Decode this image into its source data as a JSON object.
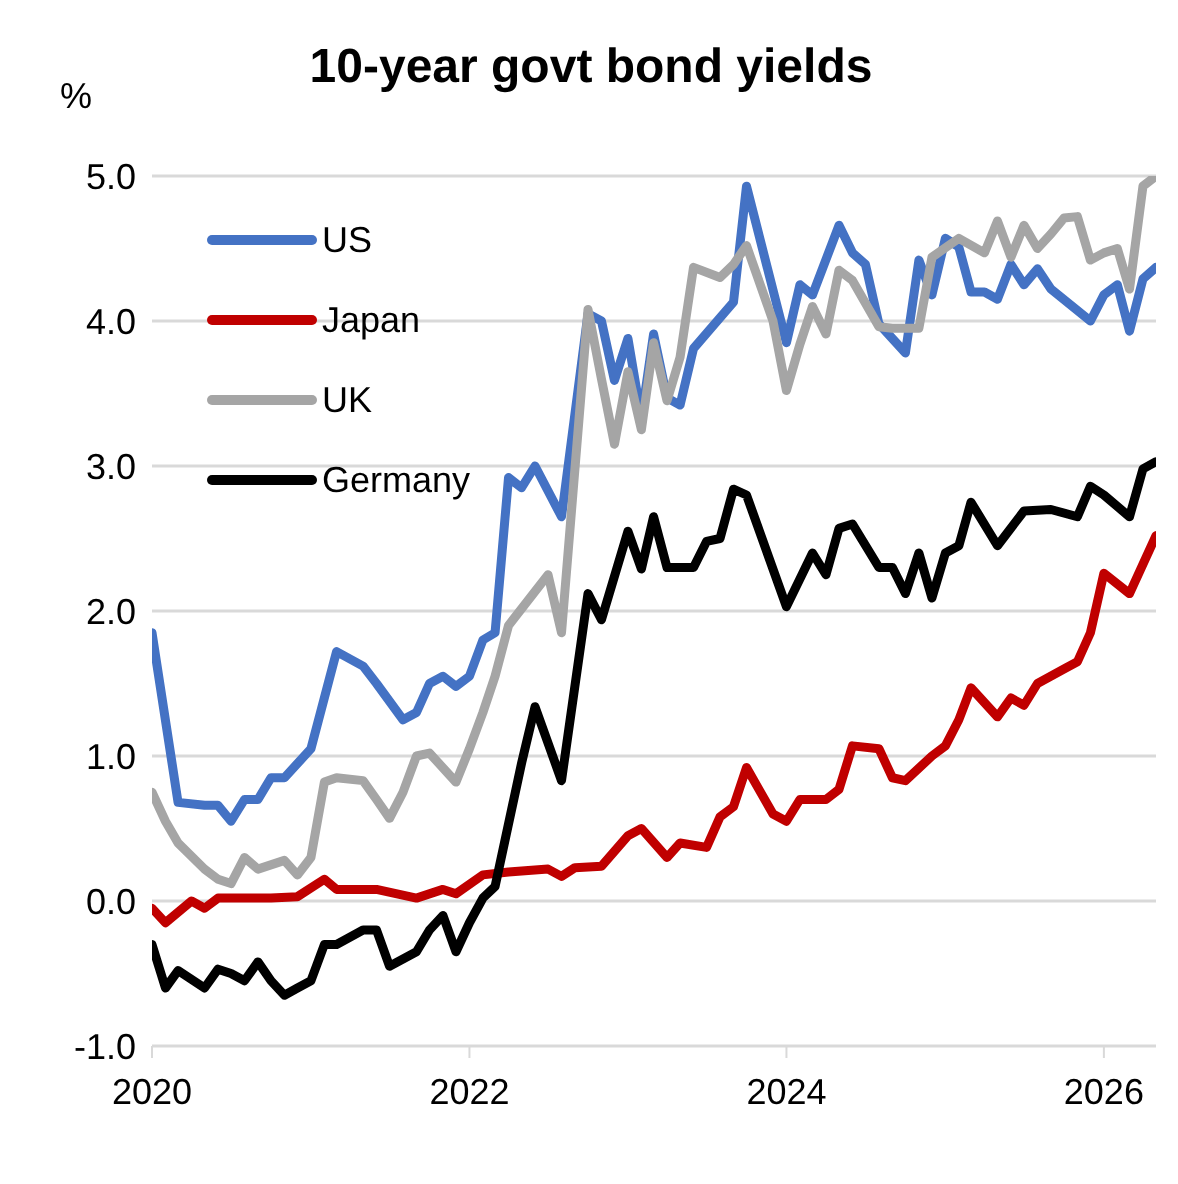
{
  "chart_data": {
    "type": "line",
    "title": "10-year govt bond yields",
    "ylabel": "%",
    "grid": "y",
    "legend": "top left",
    "line_style": "solid",
    "marker": "none",
    "xlim": [
      "2020-01",
      "2026-05"
    ],
    "xticks": [
      "2020",
      "2022",
      "2024",
      "2026"
    ],
    "ylim": [
      -1,
      5
    ],
    "yticks": [
      {
        "value": -1,
        "label": "-1.0"
      },
      {
        "value": 0,
        "label": "0.0"
      },
      {
        "value": 1,
        "label": "1.0"
      },
      {
        "value": 2,
        "label": "2.0"
      },
      {
        "value": 3,
        "label": "3.0"
      },
      {
        "value": 4,
        "label": "4.0"
      },
      {
        "value": 5,
        "label": "5.0"
      }
    ],
    "series": [
      {
        "name": "US",
        "color": "#4472c4",
        "x": [
          "2020-01",
          "2020-03",
          "2020-05",
          "2020-06",
          "2020-07",
          "2020-08",
          "2020-09",
          "2020-10",
          "2020-11",
          "2021-01",
          "2021-03",
          "2021-05",
          "2021-06",
          "2021-08",
          "2021-09",
          "2021-10",
          "2021-11",
          "2021-12",
          "2022-01",
          "2022-02",
          "2022-03",
          "2022-04",
          "2022-05",
          "2022-06",
          "2022-08",
          "2022-10",
          "2022-11",
          "2022-12",
          "2023-01",
          "2023-02",
          "2023-03",
          "2023-04",
          "2023-05",
          "2023-06",
          "2023-09",
          "2023-10",
          "2024-01",
          "2024-02",
          "2024-03",
          "2024-05",
          "2024-06",
          "2024-07",
          "2024-08",
          "2024-10",
          "2024-11",
          "2024-12",
          "2025-01",
          "2025-02",
          "2025-03",
          "2025-04",
          "2025-05",
          "2025-06",
          "2025-07",
          "2025-08",
          "2025-09",
          "2025-12",
          "2026-01",
          "2026-02",
          "2026-03",
          "2026-04",
          "2026-05"
        ],
        "values": [
          1.85,
          0.68,
          0.66,
          0.66,
          0.55,
          0.7,
          0.7,
          0.85,
          0.85,
          1.05,
          1.72,
          1.62,
          1.5,
          1.25,
          1.3,
          1.5,
          1.55,
          1.48,
          1.55,
          1.8,
          1.85,
          2.92,
          2.85,
          3.0,
          2.65,
          4.05,
          4.0,
          3.59,
          3.88,
          3.33,
          3.91,
          3.47,
          3.42,
          3.81,
          4.13,
          4.93,
          3.85,
          4.25,
          4.18,
          4.66,
          4.47,
          4.39,
          3.98,
          3.78,
          4.42,
          4.18,
          4.57,
          4.51,
          4.2,
          4.2,
          4.15,
          4.39,
          4.25,
          4.36,
          4.22,
          4.0,
          4.18,
          4.25,
          3.93,
          4.29,
          4.37
        ]
      },
      {
        "name": "Japan",
        "color": "#c00000",
        "x": [
          "2020-01",
          "2020-02",
          "2020-04",
          "2020-05",
          "2020-06",
          "2020-08",
          "2020-10",
          "2020-12",
          "2021-02",
          "2021-03",
          "2021-06",
          "2021-09",
          "2021-11",
          "2021-12",
          "2022-02",
          "2022-04",
          "2022-07",
          "2022-08",
          "2022-09",
          "2022-11",
          "2023-01",
          "2023-02",
          "2023-04",
          "2023-05",
          "2023-07",
          "2023-08",
          "2023-09",
          "2023-10",
          "2023-12",
          "2024-01",
          "2024-02",
          "2024-04",
          "2024-05",
          "2024-06",
          "2024-08",
          "2024-09",
          "2024-10",
          "2024-12",
          "2025-01",
          "2025-02",
          "2025-03",
          "2025-05",
          "2025-06",
          "2025-07",
          "2025-08",
          "2025-10",
          "2025-11",
          "2025-12",
          "2026-01",
          "2026-03",
          "2026-05"
        ],
        "values": [
          -0.05,
          -0.15,
          0.0,
          -0.05,
          0.02,
          0.02,
          0.02,
          0.03,
          0.15,
          0.08,
          0.08,
          0.02,
          0.08,
          0.05,
          0.18,
          0.2,
          0.22,
          0.17,
          0.23,
          0.24,
          0.45,
          0.5,
          0.3,
          0.4,
          0.37,
          0.58,
          0.65,
          0.92,
          0.6,
          0.55,
          0.7,
          0.7,
          0.77,
          1.07,
          1.05,
          0.85,
          0.83,
          1.0,
          1.07,
          1.25,
          1.47,
          1.27,
          1.4,
          1.35,
          1.5,
          1.6,
          1.65,
          1.85,
          2.26,
          2.12,
          2.52
        ]
      },
      {
        "name": "UK",
        "color": "#a5a5a5",
        "x": [
          "2020-01",
          "2020-02",
          "2020-03",
          "2020-05",
          "2020-06",
          "2020-07",
          "2020-08",
          "2020-09",
          "2020-11",
          "2020-12",
          "2021-01",
          "2021-02",
          "2021-03",
          "2021-05",
          "2021-06",
          "2021-07",
          "2021-08",
          "2021-09",
          "2021-10",
          "2021-12",
          "2022-01",
          "2022-02",
          "2022-03",
          "2022-04",
          "2022-07",
          "2022-08",
          "2022-10",
          "2022-11",
          "2022-12",
          "2023-01",
          "2023-02",
          "2023-03",
          "2023-04",
          "2023-05",
          "2023-06",
          "2023-08",
          "2023-09",
          "2023-10",
          "2023-12",
          "2024-01",
          "2024-02",
          "2024-03",
          "2024-04",
          "2024-05",
          "2024-06",
          "2024-08",
          "2024-09",
          "2024-11",
          "2024-12",
          "2025-02",
          "2025-04",
          "2025-05",
          "2025-06",
          "2025-07",
          "2025-08",
          "2025-09",
          "2025-10",
          "2025-11",
          "2025-12",
          "2026-01",
          "2026-02",
          "2026-03",
          "2026-04",
          "2026-05"
        ],
        "values": [
          0.75,
          0.55,
          0.4,
          0.22,
          0.15,
          0.12,
          0.3,
          0.22,
          0.28,
          0.18,
          0.3,
          0.82,
          0.85,
          0.83,
          0.7,
          0.57,
          0.75,
          1.0,
          1.02,
          0.82,
          1.05,
          1.3,
          1.55,
          1.9,
          2.25,
          1.85,
          4.08,
          3.6,
          3.15,
          3.65,
          3.25,
          3.85,
          3.45,
          3.75,
          4.37,
          4.3,
          4.39,
          4.52,
          4.0,
          3.52,
          3.84,
          4.1,
          3.91,
          4.35,
          4.28,
          3.96,
          3.95,
          3.95,
          4.44,
          4.57,
          4.47,
          4.69,
          4.44,
          4.66,
          4.5,
          4.6,
          4.71,
          4.72,
          4.42,
          4.47,
          4.5,
          4.22,
          4.93,
          5.0
        ]
      },
      {
        "name": "Germany",
        "color": "#000000",
        "x": [
          "2020-01",
          "2020-02",
          "2020-03",
          "2020-05",
          "2020-06",
          "2020-07",
          "2020-08",
          "2020-09",
          "2020-10",
          "2020-11",
          "2020-12",
          "2021-01",
          "2021-02",
          "2021-03",
          "2021-05",
          "2021-06",
          "2021-07",
          "2021-09",
          "2021-10",
          "2021-11",
          "2021-12",
          "2022-01",
          "2022-02",
          "2022-03",
          "2022-05",
          "2022-06",
          "2022-08",
          "2022-10",
          "2022-11",
          "2023-01",
          "2023-02",
          "2023-03",
          "2023-04",
          "2023-06",
          "2023-07",
          "2023-08",
          "2023-09",
          "2023-10",
          "2024-01",
          "2024-03",
          "2024-04",
          "2024-05",
          "2024-06",
          "2024-08",
          "2024-09",
          "2024-10",
          "2024-11",
          "2024-12",
          "2025-01",
          "2025-02",
          "2025-03",
          "2025-05",
          "2025-07",
          "2025-09",
          "2025-11",
          "2025-12",
          "2026-01",
          "2026-03",
          "2026-04",
          "2026-05"
        ],
        "values": [
          -0.3,
          -0.6,
          -0.48,
          -0.6,
          -0.47,
          -0.5,
          -0.55,
          -0.42,
          -0.55,
          -0.65,
          -0.6,
          -0.55,
          -0.3,
          -0.3,
          -0.2,
          -0.2,
          -0.45,
          -0.35,
          -0.2,
          -0.1,
          -0.35,
          -0.15,
          0.02,
          0.1,
          0.95,
          1.34,
          0.83,
          2.12,
          1.94,
          2.55,
          2.29,
          2.65,
          2.3,
          2.3,
          2.48,
          2.5,
          2.84,
          2.8,
          2.03,
          2.4,
          2.25,
          2.57,
          2.6,
          2.3,
          2.3,
          2.12,
          2.4,
          2.09,
          2.4,
          2.45,
          2.75,
          2.45,
          2.69,
          2.7,
          2.65,
          2.86,
          2.8,
          2.65,
          2.98,
          3.03
        ]
      }
    ]
  }
}
